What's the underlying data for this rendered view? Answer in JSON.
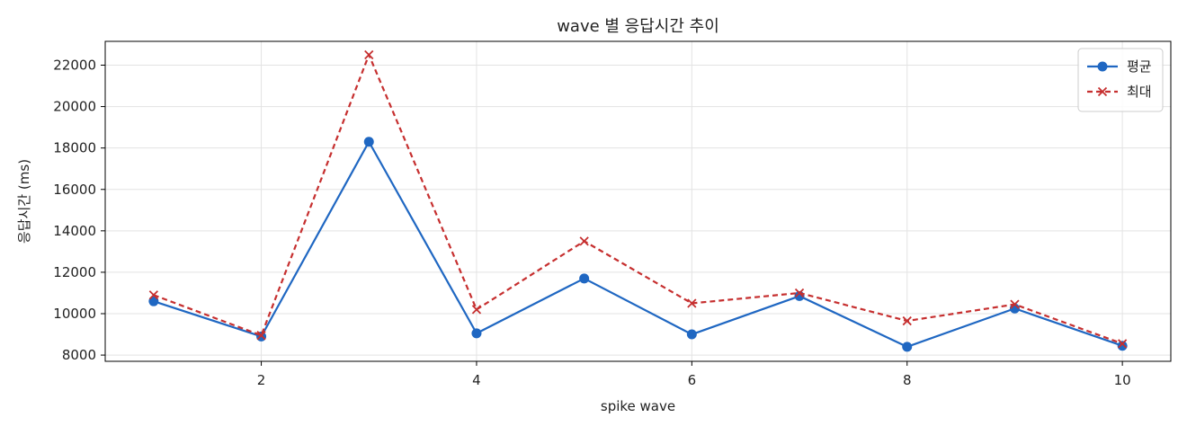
{
  "chart_data": {
    "type": "line",
    "title": "wave 별 응답시간 추이",
    "xlabel": "spike wave",
    "ylabel": "응답시간 (ms)",
    "x": [
      1,
      2,
      3,
      4,
      5,
      6,
      7,
      8,
      9,
      10
    ],
    "xlim": [
      0.55,
      10.45
    ],
    "ylim": [
      7700,
      23150
    ],
    "xticks": [
      2,
      4,
      6,
      8,
      10
    ],
    "yticks": [
      8000,
      10000,
      12000,
      14000,
      16000,
      18000,
      20000,
      22000
    ],
    "grid": true,
    "legend_position": "top-right",
    "series": [
      {
        "name": "평균",
        "color": "#1f67c2",
        "marker": "circle",
        "line_style": "solid",
        "values": [
          10600,
          8900,
          18300,
          9050,
          11700,
          9000,
          10850,
          8400,
          10250,
          8450
        ]
      },
      {
        "name": "최대",
        "color": "#c62f2f",
        "marker": "x",
        "line_style": "dashed",
        "values": [
          10900,
          8950,
          22500,
          10200,
          13500,
          10500,
          11000,
          9650,
          10450,
          8550
        ]
      }
    ]
  }
}
